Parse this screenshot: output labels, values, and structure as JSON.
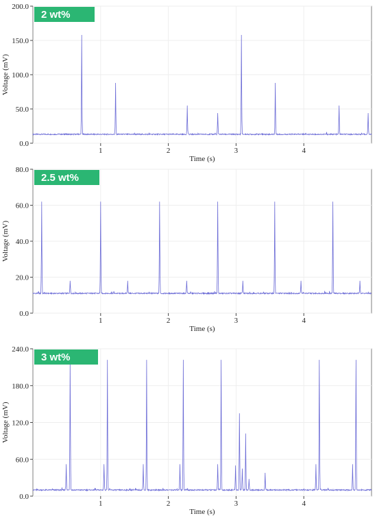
{
  "colors": {
    "trace": "#6b6bd6",
    "badge": "#2bb673",
    "badge_text": "#ffffff",
    "grid": "#eeeeee",
    "frame": "#7f7f7f"
  },
  "chart_data": [
    {
      "type": "line",
      "badge": "2 wt%",
      "xlabel": "Time (s)",
      "ylabel": "Voltage (mV)",
      "xlim": [
        0,
        5
      ],
      "ylim": [
        0,
        200
      ],
      "xticks": [
        1,
        2,
        3,
        4
      ],
      "xtick_labels": [
        "1",
        "2",
        "3",
        "4"
      ],
      "yticks": [
        0,
        50,
        100,
        150,
        200
      ],
      "ytick_labels": [
        "0.0",
        "50.0",
        "100.0",
        "150.0",
        "200.0"
      ],
      "grid": true,
      "baseline": 13,
      "peaks": [
        [
          0.72,
          158
        ],
        [
          1.22,
          88
        ],
        [
          2.28,
          55
        ],
        [
          2.73,
          44
        ],
        [
          3.08,
          158
        ],
        [
          3.58,
          88
        ],
        [
          4.52,
          55
        ],
        [
          4.95,
          44
        ]
      ]
    },
    {
      "type": "line",
      "badge": "2.5 wt%",
      "xlabel": "Time (s)",
      "ylabel": "Voltage (mV)",
      "xlim": [
        0,
        5
      ],
      "ylim": [
        0,
        80
      ],
      "xticks": [
        1,
        2,
        3,
        4
      ],
      "xtick_labels": [
        "1",
        "2",
        "3",
        "4"
      ],
      "yticks": [
        0,
        20,
        40,
        60,
        80
      ],
      "ytick_labels": [
        "0.0",
        "20.0",
        "40.0",
        "60.0",
        "80.0"
      ],
      "grid": true,
      "baseline": 11,
      "peaks": [
        [
          0.13,
          62
        ],
        [
          0.55,
          18
        ],
        [
          1.0,
          62
        ],
        [
          1.4,
          18
        ],
        [
          1.87,
          62
        ],
        [
          2.27,
          18
        ],
        [
          2.73,
          62
        ],
        [
          3.1,
          18
        ],
        [
          3.57,
          62
        ],
        [
          3.96,
          18
        ],
        [
          4.43,
          62
        ],
        [
          4.83,
          18
        ]
      ]
    },
    {
      "type": "line",
      "badge": "3 wt%",
      "xlabel": "Time (s)",
      "ylabel": "Voltage (mV)",
      "xlim": [
        0,
        5
      ],
      "ylim": [
        0,
        240
      ],
      "xticks": [
        1,
        2,
        3,
        4
      ],
      "xtick_labels": [
        "1",
        "2",
        "3",
        "4"
      ],
      "yticks": [
        0,
        60,
        120,
        180,
        240
      ],
      "ytick_labels": [
        "0.0",
        "60.0",
        "120.0",
        "180.0",
        "240.0"
      ],
      "grid": true,
      "baseline": 10,
      "peaks": [
        [
          0.49,
          52
        ],
        [
          0.55,
          222
        ],
        [
          1.05,
          52
        ],
        [
          1.1,
          222
        ],
        [
          1.63,
          52
        ],
        [
          1.68,
          222
        ],
        [
          2.17,
          52
        ],
        [
          2.22,
          222
        ],
        [
          2.73,
          52
        ],
        [
          2.78,
          222
        ],
        [
          2.99,
          50
        ],
        [
          3.05,
          135
        ],
        [
          3.09,
          45
        ],
        [
          3.14,
          102
        ],
        [
          3.19,
          28
        ],
        [
          3.43,
          38
        ],
        [
          4.18,
          52
        ],
        [
          4.23,
          222
        ],
        [
          4.72,
          52
        ],
        [
          4.77,
          222
        ]
      ]
    }
  ]
}
